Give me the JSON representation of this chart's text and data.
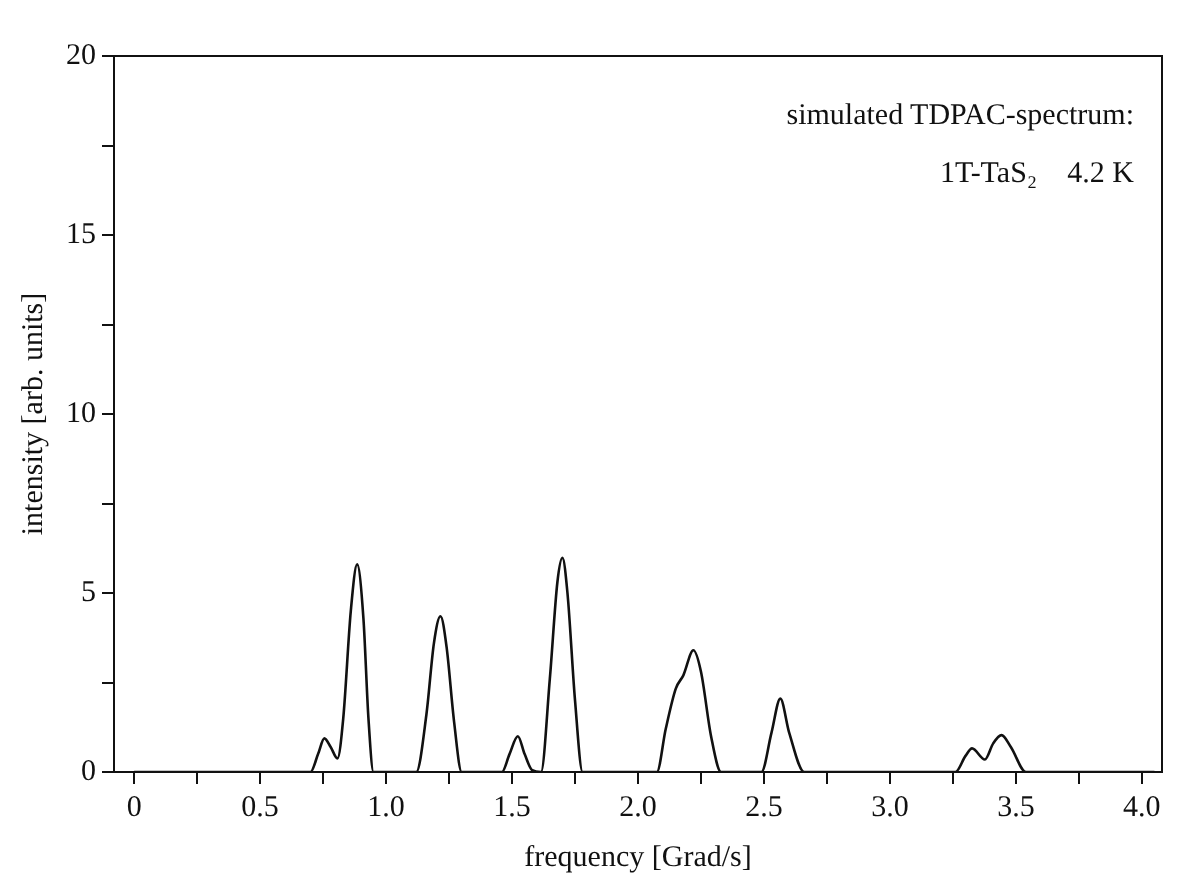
{
  "chart_data": {
    "type": "line",
    "xlabel": "frequency [Grad/s]",
    "ylabel": "intensity [arb. units]",
    "annotations": [
      "simulated TDPAC-spectrum:",
      "1T-TaS₂    4.2 K"
    ],
    "xlim": [
      -0.08,
      4.08
    ],
    "ylim": [
      0,
      20
    ],
    "xticks": [
      0,
      {
        "value": 0.25,
        "label": null
      },
      0.5,
      {
        "value": 0.75,
        "label": null
      },
      {
        "value": 1,
        "label": "1.0"
      },
      {
        "value": 1.25,
        "label": null
      },
      1.5,
      {
        "value": 1.75,
        "label": null
      },
      {
        "value": 2,
        "label": "2.0"
      },
      {
        "value": 2.25,
        "label": null
      },
      2.5,
      {
        "value": 2.75,
        "label": null
      },
      {
        "value": 3,
        "label": "3.0"
      },
      {
        "value": 3.25,
        "label": null
      },
      3.5,
      {
        "value": 3.75,
        "label": null
      },
      {
        "value": 4,
        "label": "4.0"
      }
    ],
    "yticks": [
      0,
      {
        "value": 2.5,
        "label": null
      },
      5,
      {
        "value": 7.5,
        "label": null
      },
      10,
      {
        "value": 12.5,
        "label": null
      },
      15,
      {
        "value": 17.5,
        "label": null
      },
      20
    ],
    "grid": false,
    "legend": false,
    "marker": "none",
    "line_style": "solid",
    "series": [
      {
        "color": "#111111",
        "x": [
          0,
          0.7,
          0.73,
          0.755,
          0.78,
          0.807,
          0.83,
          0.86,
          0.885,
          0.91,
          0.93,
          0.95,
          1.12,
          1.16,
          1.19,
          1.216,
          1.24,
          1.27,
          1.3,
          1.46,
          1.49,
          1.523,
          1.55,
          1.58,
          1.615,
          1.65,
          1.68,
          1.7,
          1.72,
          1.75,
          1.78,
          2.075,
          2.11,
          2.15,
          2.18,
          2.22,
          2.25,
          2.29,
          2.33,
          2.49,
          2.53,
          2.565,
          2.6,
          2.66,
          3.26,
          3.3,
          3.326,
          3.377,
          3.41,
          3.443,
          3.48,
          3.54,
          4.05
        ],
        "values": [
          0,
          0,
          0.5,
          0.94,
          0.7,
          0.38,
          1.5,
          4.5,
          5.8,
          4.3,
          1.5,
          0,
          0,
          1.6,
          3.6,
          4.35,
          3.5,
          1.4,
          0,
          0,
          0.5,
          1.0,
          0.5,
          0.05,
          0,
          2.6,
          5.3,
          5.98,
          5.0,
          2.0,
          0,
          0,
          1.2,
          2.33,
          2.7,
          3.4,
          2.8,
          1.0,
          0,
          0,
          1.1,
          2.05,
          1.1,
          0,
          0,
          0.45,
          0.66,
          0.35,
          0.8,
          1.03,
          0.7,
          0,
          0
        ]
      }
    ]
  }
}
